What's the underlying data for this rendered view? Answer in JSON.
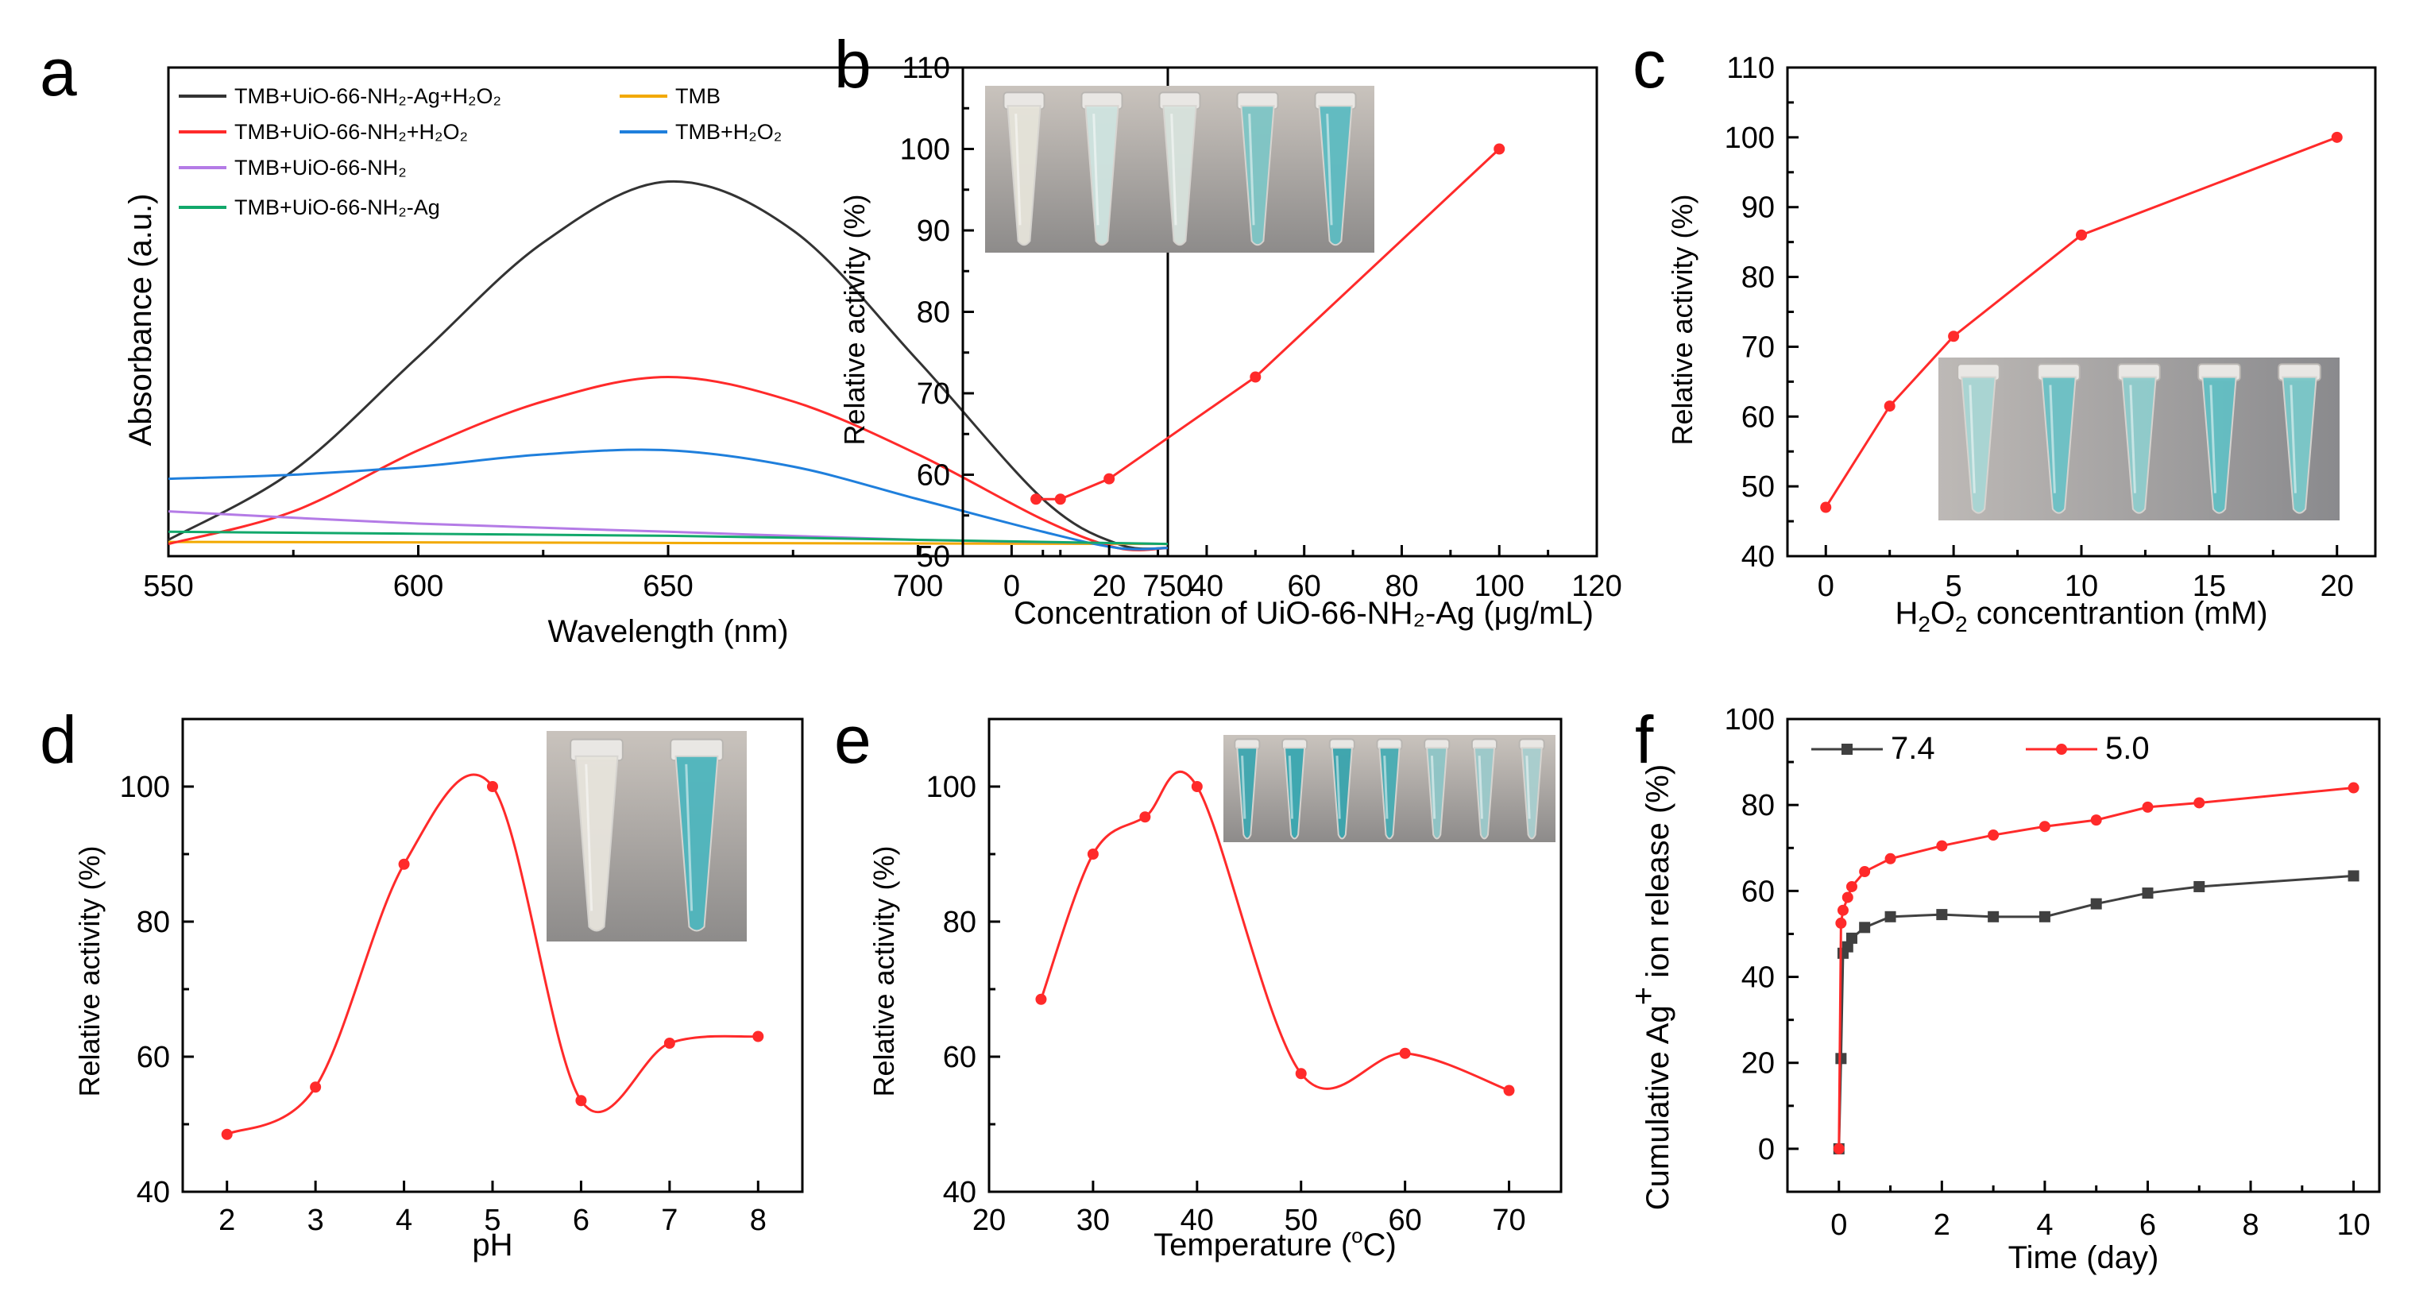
{
  "colors": {
    "black_curve": "#333333",
    "red": "#ff2a2a",
    "blue": "#1f7fdc",
    "orange": "#f2a900",
    "purple": "#b47be6",
    "green": "#12a86b",
    "gray": "#404040",
    "tube_cyan": "#4fb6be"
  },
  "chart_data": [
    {
      "panel": "a",
      "type": "line",
      "title": "",
      "xlabel": "Wavelength (nm)",
      "ylabel": "Absorbance (a.u.)",
      "xlim": [
        550,
        750
      ],
      "ylim": [
        0,
        1
      ],
      "xticks": [
        550,
        600,
        650,
        700,
        750
      ],
      "legend_position": "top",
      "series": [
        {
          "name": "TMB+UiO-66-NH₂-Ag+H₂O₂",
          "color": "black_curve",
          "x": [
            550,
            575,
            600,
            625,
            650,
            675,
            700,
            725,
            740,
            750
          ],
          "y": [
            0.02,
            0.19,
            0.47,
            0.75,
            0.9,
            0.78,
            0.46,
            0.12,
            0.01,
            0.0
          ]
        },
        {
          "name": "TMB",
          "color": "orange",
          "x": [
            550,
            750
          ],
          "y": [
            0.015,
            0.01
          ]
        },
        {
          "name": "TMB+UiO-66-NH₂+H₂O₂",
          "color": "red",
          "x": [
            550,
            575,
            600,
            625,
            650,
            675,
            700,
            725,
            740,
            750
          ],
          "y": [
            0.01,
            0.09,
            0.24,
            0.36,
            0.42,
            0.36,
            0.23,
            0.07,
            0.0,
            0.0
          ]
        },
        {
          "name": "TMB+H₂O₂",
          "color": "blue",
          "x": [
            550,
            575,
            600,
            625,
            650,
            675,
            700,
            725,
            740,
            750
          ],
          "y": [
            0.17,
            0.18,
            0.2,
            0.23,
            0.24,
            0.2,
            0.12,
            0.04,
            0.0,
            0.0
          ]
        },
        {
          "name": "TMB+UiO-66-NH₂",
          "color": "purple",
          "x": [
            550,
            600,
            650,
            700,
            750
          ],
          "y": [
            0.09,
            0.06,
            0.04,
            0.02,
            0.01
          ]
        },
        {
          "name": "TMB+UiO-66-NH₂-Ag",
          "color": "green",
          "x": [
            550,
            600,
            650,
            700,
            750
          ],
          "y": [
            0.04,
            0.035,
            0.03,
            0.02,
            0.01
          ]
        }
      ]
    },
    {
      "panel": "b",
      "type": "line",
      "title": "",
      "xlabel": "Concentration of UiO-66-NH₂-Ag (μg/mL)",
      "ylabel": "Relative activity (%)",
      "xlim": [
        -10,
        120
      ],
      "ylim": [
        50,
        110
      ],
      "xticks": [
        0,
        20,
        40,
        60,
        80,
        100,
        120
      ],
      "yticks": [
        50,
        60,
        70,
        80,
        90,
        100,
        110
      ],
      "series": [
        {
          "name": "activity",
          "color": "red",
          "x": [
            5,
            10,
            20,
            50,
            100
          ],
          "y": [
            57,
            57,
            59.5,
            72,
            100
          ]
        }
      ],
      "inset": "five tubes, color deepening with concentration"
    },
    {
      "panel": "c",
      "type": "line",
      "title": "",
      "xlabel": "H₂O₂ concentrantion (mM)",
      "ylabel": "Relative activity (%)",
      "xlim": [
        -1.5,
        21.5
      ],
      "ylim": [
        40,
        110
      ],
      "xticks": [
        0,
        5,
        10,
        15,
        20
      ],
      "yticks": [
        40,
        50,
        60,
        70,
        80,
        90,
        100,
        110
      ],
      "series": [
        {
          "name": "activity",
          "color": "red",
          "x": [
            0,
            2.5,
            5,
            10,
            20
          ],
          "y": [
            47,
            61.5,
            71.5,
            86,
            100
          ]
        }
      ],
      "inset": "five tubes, cyan solution"
    },
    {
      "panel": "d",
      "type": "line",
      "title": "",
      "xlabel": "pH",
      "ylabel": "Relative activity (%)",
      "xlim": [
        1.5,
        8.5
      ],
      "ylim": [
        40,
        110
      ],
      "xticks": [
        2,
        3,
        4,
        5,
        6,
        7,
        8
      ],
      "yticks": [
        40,
        60,
        80,
        100
      ],
      "series": [
        {
          "name": "activity",
          "color": "red",
          "x": [
            2,
            3,
            4,
            5,
            6,
            7,
            8
          ],
          "y": [
            48.5,
            55.5,
            88.5,
            100,
            53.5,
            62,
            63
          ]
        }
      ],
      "inset": "two tubes: colorless and cyan"
    },
    {
      "panel": "e",
      "type": "line",
      "title": "",
      "xlabel": "Temperature (°C)",
      "ylabel": "Relative activity (%)",
      "xlim": [
        20,
        75
      ],
      "ylim": [
        40,
        110
      ],
      "xticks": [
        20,
        30,
        40,
        50,
        60,
        70
      ],
      "yticks": [
        40,
        60,
        80,
        100
      ],
      "series": [
        {
          "name": "activity",
          "color": "red",
          "x": [
            25,
            30,
            35,
            40,
            50,
            60,
            70
          ],
          "y": [
            68.5,
            90,
            95.5,
            100,
            57.5,
            60.5,
            55
          ]
        }
      ],
      "inset": "seven tubes, fading with temperature"
    },
    {
      "panel": "f",
      "type": "line",
      "title": "",
      "xlabel": "Time (day)",
      "ylabel": "Cumulative Ag⁺ ion release (%)",
      "xlim": [
        -1,
        10.5
      ],
      "ylim": [
        -10,
        100
      ],
      "xticks": [
        0,
        2,
        4,
        6,
        8,
        10
      ],
      "yticks": [
        0,
        20,
        40,
        60,
        80,
        100
      ],
      "legend_position": "top-left",
      "series": [
        {
          "name": "7.4",
          "color": "gray",
          "marker": "square",
          "x": [
            0,
            0.04,
            0.08,
            0.17,
            0.25,
            0.5,
            1,
            2,
            3,
            4,
            5,
            6,
            7,
            10
          ],
          "y": [
            0,
            21,
            45.5,
            47,
            49,
            51.5,
            54,
            54.5,
            54,
            54,
            57,
            59.5,
            61,
            63.5
          ]
        },
        {
          "name": "5.0",
          "color": "red",
          "marker": "circle",
          "x": [
            0,
            0.04,
            0.08,
            0.17,
            0.25,
            0.5,
            1,
            2,
            3,
            4,
            5,
            6,
            7,
            10
          ],
          "y": [
            0,
            52.5,
            55.5,
            58.5,
            61,
            64.5,
            67.5,
            70.5,
            73,
            75,
            76.5,
            79.5,
            80.5,
            84
          ]
        }
      ]
    }
  ],
  "text": {
    "panel_a_letter": "a",
    "panel_b_letter": "b",
    "panel_c_letter": "c",
    "panel_d_letter": "d",
    "panel_e_letter": "e",
    "panel_f_letter": "f",
    "f_ylabel_prefix": "Cumulative Ag",
    "f_ylabel_sup": "+",
    "f_ylabel_suffix": " ion release (%)",
    "c_xlabel_prefix": "H",
    "c_xlabel_sub1": "2",
    "c_xlabel_mid": "O",
    "c_xlabel_sub2": "2",
    "c_xlabel_suffix": " concentrantion (mM)",
    "e_xlabel_prefix": "Temperature (",
    "e_xlabel_sup": "o",
    "e_xlabel_suffix": "C)"
  }
}
